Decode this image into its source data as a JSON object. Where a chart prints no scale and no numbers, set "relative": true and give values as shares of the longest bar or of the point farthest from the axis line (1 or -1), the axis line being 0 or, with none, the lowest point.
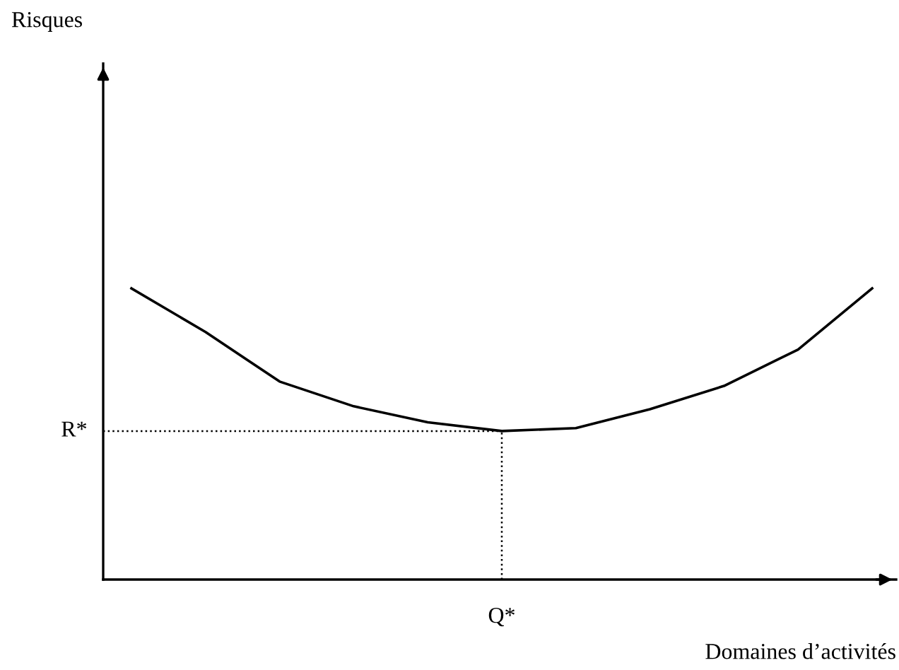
{
  "chart_data": {
    "type": "line",
    "relative": true,
    "xlabel": "Domaines d’activités",
    "annotations": [
      "Risques"
    ],
    "categories": [
      null,
      null,
      null,
      null,
      null,
      null,
      null,
      null,
      null,
      null,
      null
    ],
    "series": [
      {
        "color": "#000000",
        "values": [
          1.0,
          0.85,
          0.68,
          0.595,
          0.54,
          0.51,
          0.52,
          0.585,
          0.665,
          0.79,
          1.0
        ]
      }
    ],
    "ref_lines": [
      {
        "axis": "y",
        "value": 0.51,
        "label": "R*",
        "line_style": "dotted",
        "color": "#000000"
      },
      {
        "axis": "x",
        "value": "Q*",
        "line_style": "dotted",
        "color": "#000000"
      }
    ],
    "marker": "none",
    "line_style": "solid"
  }
}
